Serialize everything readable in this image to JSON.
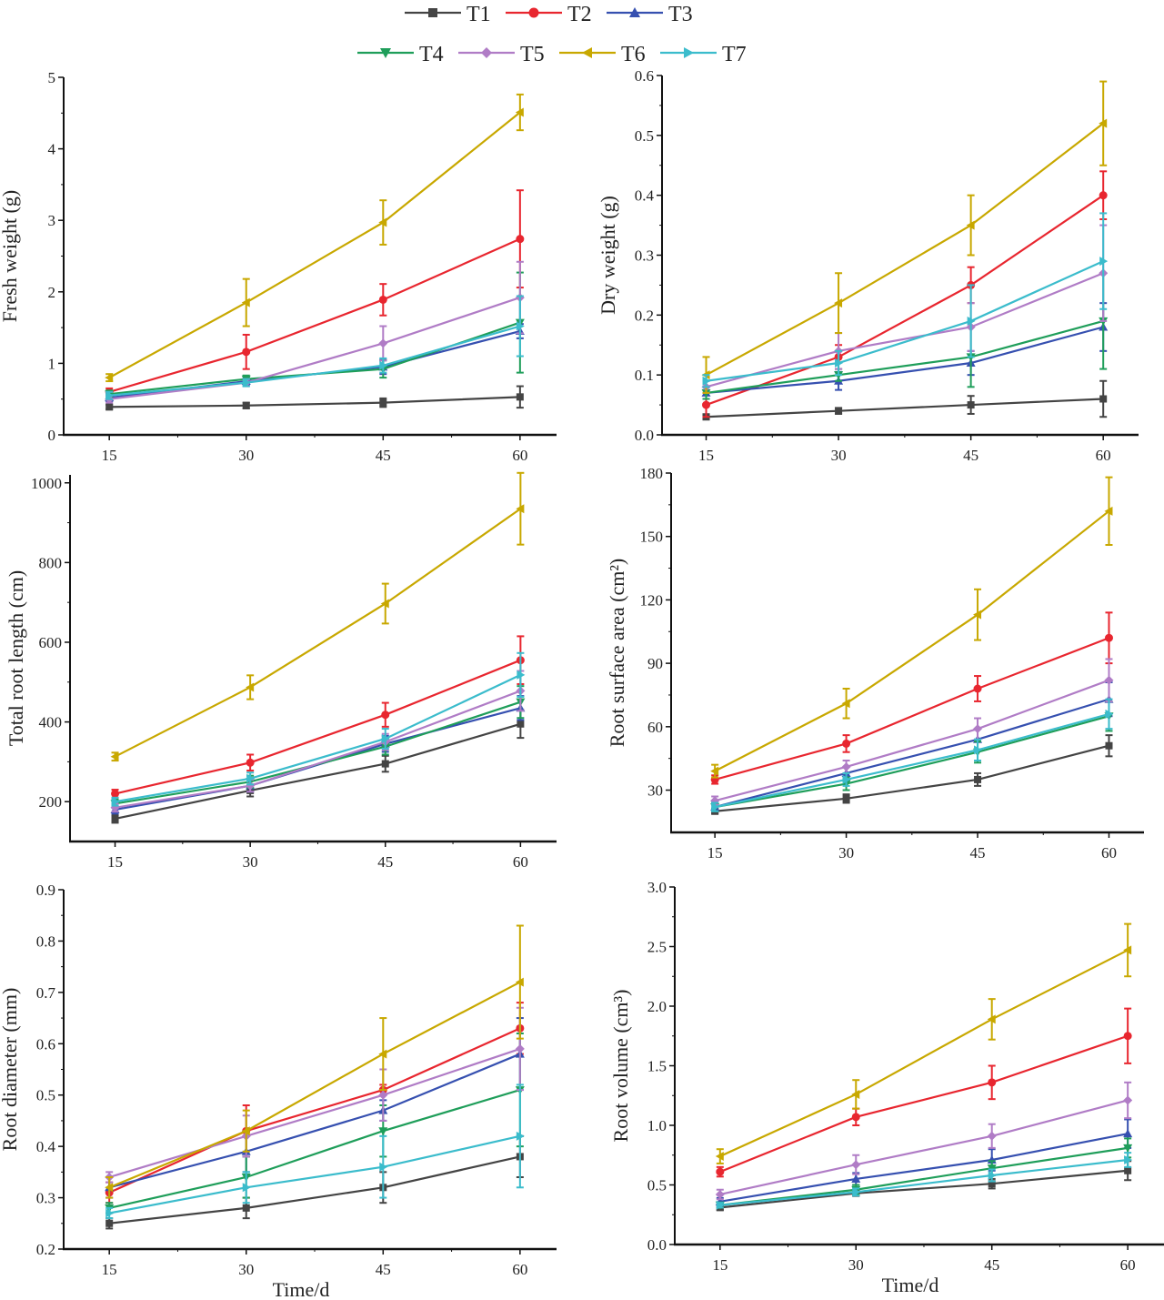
{
  "legend": {
    "placement": "top-center",
    "entries": [
      "T1",
      "T2",
      "T3",
      "T4",
      "T5",
      "T6",
      "T7"
    ]
  },
  "series_style": [
    {
      "name": "T1",
      "color": "#444444",
      "marker": "square"
    },
    {
      "name": "T2",
      "color": "#e8262f",
      "marker": "circle"
    },
    {
      "name": "T3",
      "color": "#3650b0",
      "marker": "triangle-up"
    },
    {
      "name": "T4",
      "color": "#1f9e5a",
      "marker": "triangle-down"
    },
    {
      "name": "T5",
      "color": "#b07cc6",
      "marker": "diamond"
    },
    {
      "name": "T6",
      "color": "#c8a800",
      "marker": "triangle-left"
    },
    {
      "name": "T7",
      "color": "#3bbccc",
      "marker": "triangle-right"
    }
  ],
  "chart_data": [
    {
      "type": "line",
      "ylabel": "Fresh weight (g)",
      "xlabel": "",
      "x": [
        15,
        30,
        45,
        60
      ],
      "x_ticks": [
        "15",
        "30",
        "45",
        "60"
      ],
      "xlim": [
        10,
        64
      ],
      "ylim": [
        0,
        5
      ],
      "y_ticks": [
        "0",
        "1",
        "2",
        "3",
        "4",
        "5"
      ],
      "y_tick_values": [
        0,
        1,
        2,
        3,
        4,
        5
      ],
      "series": [
        {
          "name": "T1",
          "values": [
            0.39,
            0.41,
            0.45,
            0.53
          ],
          "errors": [
            0.03,
            0.04,
            0.06,
            0.15
          ]
        },
        {
          "name": "T2",
          "values": [
            0.6,
            1.16,
            1.89,
            2.74
          ],
          "errors": [
            0.05,
            0.24,
            0.22,
            0.68
          ]
        },
        {
          "name": "T3",
          "values": [
            0.52,
            0.75,
            0.95,
            1.45
          ],
          "errors": [
            0.05,
            0.05,
            0.1,
            0.1
          ]
        },
        {
          "name": "T4",
          "values": [
            0.57,
            0.78,
            0.92,
            1.57
          ],
          "errors": [
            0.05,
            0.05,
            0.12,
            0.7
          ]
        },
        {
          "name": "T5",
          "values": [
            0.5,
            0.73,
            1.28,
            1.92
          ],
          "errors": [
            0.05,
            0.05,
            0.24,
            0.5
          ]
        },
        {
          "name": "T6",
          "values": [
            0.8,
            1.85,
            2.97,
            4.51
          ],
          "errors": [
            0.05,
            0.33,
            0.31,
            0.25
          ]
        },
        {
          "name": "T7",
          "values": [
            0.55,
            0.73,
            0.97,
            1.52
          ],
          "errors": [
            0.05,
            0.05,
            0.1,
            0.42
          ]
        }
      ]
    },
    {
      "type": "line",
      "ylabel": "Dry weight (g)",
      "xlabel": "",
      "x": [
        15,
        30,
        45,
        60
      ],
      "x_ticks": [
        "15",
        "30",
        "45",
        "60"
      ],
      "xlim": [
        10,
        64
      ],
      "ylim": [
        0,
        0.6
      ],
      "y_ticks": [
        "0.0",
        "0.1",
        "0.2",
        "0.3",
        "0.4",
        "0.5",
        "0.6"
      ],
      "y_tick_values": [
        0,
        0.1,
        0.2,
        0.3,
        0.4,
        0.5,
        0.6
      ],
      "series": [
        {
          "name": "T1",
          "values": [
            0.03,
            0.04,
            0.05,
            0.06
          ],
          "errors": [
            0.003,
            0.005,
            0.015,
            0.03
          ]
        },
        {
          "name": "T2",
          "values": [
            0.05,
            0.13,
            0.25,
            0.4
          ],
          "errors": [
            0.02,
            0.02,
            0.03,
            0.04
          ]
        },
        {
          "name": "T3",
          "values": [
            0.07,
            0.09,
            0.12,
            0.18
          ],
          "errors": [
            0.01,
            0.015,
            0.02,
            0.04
          ]
        },
        {
          "name": "T4",
          "values": [
            0.07,
            0.1,
            0.13,
            0.19
          ],
          "errors": [
            0.01,
            0.01,
            0.05,
            0.08
          ]
        },
        {
          "name": "T5",
          "values": [
            0.08,
            0.14,
            0.18,
            0.27
          ],
          "errors": [
            0.01,
            0.03,
            0.04,
            0.08
          ]
        },
        {
          "name": "T6",
          "values": [
            0.1,
            0.22,
            0.35,
            0.52
          ],
          "errors": [
            0.03,
            0.05,
            0.05,
            0.07
          ]
        },
        {
          "name": "T7",
          "values": [
            0.09,
            0.12,
            0.19,
            0.29
          ],
          "errors": [
            0.01,
            0.02,
            0.06,
            0.08
          ]
        }
      ]
    },
    {
      "type": "line",
      "ylabel": "Total root length (cm)",
      "xlabel": "",
      "x": [
        15,
        30,
        45,
        60
      ],
      "x_ticks": [
        "15",
        "30",
        "45",
        "60"
      ],
      "xlim": [
        10,
        64
      ],
      "ylim": [
        100,
        1020
      ],
      "y_ticks": [
        "200",
        "400",
        "600",
        "800",
        "1000"
      ],
      "y_tick_values": [
        200,
        400,
        600,
        800,
        1000
      ],
      "series": [
        {
          "name": "T1",
          "values": [
            157,
            228,
            295,
            395
          ],
          "errors": [
            10,
            15,
            20,
            35
          ]
        },
        {
          "name": "T2",
          "values": [
            220,
            298,
            418,
            555
          ],
          "errors": [
            10,
            20,
            30,
            60
          ]
        },
        {
          "name": "T3",
          "values": [
            180,
            240,
            345,
            435
          ],
          "errors": [
            10,
            15,
            20,
            30
          ]
        },
        {
          "name": "T4",
          "values": [
            195,
            250,
            338,
            450
          ],
          "errors": [
            10,
            15,
            20,
            40
          ]
        },
        {
          "name": "T5",
          "values": [
            185,
            240,
            350,
            478
          ],
          "errors": [
            10,
            15,
            20,
            50
          ]
        },
        {
          "name": "T6",
          "values": [
            313,
            487,
            697,
            935
          ],
          "errors": [
            10,
            30,
            50,
            90
          ]
        },
        {
          "name": "T7",
          "values": [
            200,
            258,
            358,
            518
          ],
          "errors": [
            10,
            15,
            25,
            55
          ]
        }
      ]
    },
    {
      "type": "line",
      "ylabel": "Root surface area (cm²)",
      "xlabel": "",
      "x": [
        15,
        30,
        45,
        60
      ],
      "x_ticks": [
        "15",
        "30",
        "45",
        "60"
      ],
      "xlim": [
        10,
        64
      ],
      "ylim": [
        10,
        180
      ],
      "y_ticks": [
        "30",
        "60",
        "90",
        "120",
        "150",
        "180"
      ],
      "y_tick_values": [
        30,
        60,
        90,
        120,
        150,
        180
      ],
      "series": [
        {
          "name": "T1",
          "values": [
            20,
            26,
            35,
            51
          ],
          "errors": [
            1,
            2,
            3,
            5
          ]
        },
        {
          "name": "T2",
          "values": [
            35,
            52,
            78,
            102
          ],
          "errors": [
            2,
            4,
            6,
            12
          ]
        },
        {
          "name": "T3",
          "values": [
            22,
            38,
            54,
            73
          ],
          "errors": [
            2,
            3,
            5,
            8
          ]
        },
        {
          "name": "T4",
          "values": [
            22,
            33,
            48,
            65
          ],
          "errors": [
            2,
            3,
            5,
            7
          ]
        },
        {
          "name": "T5",
          "values": [
            25,
            41,
            59,
            82
          ],
          "errors": [
            2,
            3,
            5,
            10
          ]
        },
        {
          "name": "T6",
          "values": [
            39,
            71,
            113,
            162
          ],
          "errors": [
            3,
            7,
            12,
            16
          ]
        },
        {
          "name": "T7",
          "values": [
            22,
            35,
            49,
            66
          ],
          "errors": [
            2,
            3,
            5,
            7
          ]
        }
      ]
    },
    {
      "type": "line",
      "ylabel": "Root diameter (mm)",
      "xlabel": "Time/d",
      "x": [
        15,
        30,
        45,
        60
      ],
      "x_ticks": [
        "15",
        "30",
        "45",
        "60"
      ],
      "xlim": [
        10,
        64
      ],
      "ylim": [
        0.2,
        0.9
      ],
      "y_ticks": [
        "0.2",
        "0.3",
        "0.4",
        "0.5",
        "0.6",
        "0.7",
        "0.8",
        "0.9"
      ],
      "y_tick_values": [
        0.2,
        0.3,
        0.4,
        0.5,
        0.6,
        0.7,
        0.8,
        0.9
      ],
      "series": [
        {
          "name": "T1",
          "values": [
            0.25,
            0.28,
            0.32,
            0.38
          ],
          "errors": [
            0.01,
            0.02,
            0.03,
            0.04
          ]
        },
        {
          "name": "T2",
          "values": [
            0.31,
            0.43,
            0.51,
            0.63
          ],
          "errors": [
            0.02,
            0.05,
            0.01,
            0.05
          ]
        },
        {
          "name": "T3",
          "values": [
            0.32,
            0.39,
            0.47,
            0.58
          ],
          "errors": [
            0.02,
            0.04,
            0.02,
            0.07
          ]
        },
        {
          "name": "T4",
          "values": [
            0.28,
            0.34,
            0.43,
            0.51
          ],
          "errors": [
            0.01,
            0.04,
            0.05,
            0.11
          ]
        },
        {
          "name": "T5",
          "values": [
            0.34,
            0.42,
            0.5,
            0.59
          ],
          "errors": [
            0.01,
            0.04,
            0.05,
            0.08
          ]
        },
        {
          "name": "T6",
          "values": [
            0.32,
            0.43,
            0.58,
            0.72
          ],
          "errors": [
            0.02,
            0.04,
            0.07,
            0.11
          ]
        },
        {
          "name": "T7",
          "values": [
            0.27,
            0.32,
            0.36,
            0.42
          ],
          "errors": [
            0.01,
            0.03,
            0.06,
            0.1
          ]
        }
      ]
    },
    {
      "type": "line",
      "ylabel": "Root volume (cm³)",
      "xlabel": "Time/d",
      "x": [
        15,
        30,
        45,
        60
      ],
      "x_ticks": [
        "15",
        "30",
        "45",
        "60"
      ],
      "xlim": [
        10,
        64
      ],
      "ylim": [
        0,
        3
      ],
      "y_ticks": [
        "0.0",
        "0.5",
        "1.0",
        "1.5",
        "2.0",
        "2.5",
        "3.0"
      ],
      "y_tick_values": [
        0,
        0.5,
        1,
        1.5,
        2,
        2.5,
        3
      ],
      "series": [
        {
          "name": "T1",
          "values": [
            0.31,
            0.43,
            0.51,
            0.62
          ],
          "errors": [
            0.02,
            0.02,
            0.04,
            0.08
          ]
        },
        {
          "name": "T2",
          "values": [
            0.61,
            1.07,
            1.36,
            1.75
          ],
          "errors": [
            0.04,
            0.07,
            0.14,
            0.23
          ]
        },
        {
          "name": "T3",
          "values": [
            0.36,
            0.55,
            0.71,
            0.93
          ],
          "errors": [
            0.03,
            0.05,
            0.09,
            0.12
          ]
        },
        {
          "name": "T4",
          "values": [
            0.33,
            0.46,
            0.64,
            0.81
          ],
          "errors": [
            0.02,
            0.04,
            0.06,
            0.08
          ]
        },
        {
          "name": "T5",
          "values": [
            0.42,
            0.67,
            0.91,
            1.21
          ],
          "errors": [
            0.04,
            0.08,
            0.1,
            0.15
          ]
        },
        {
          "name": "T6",
          "values": [
            0.74,
            1.26,
            1.89,
            2.47
          ],
          "errors": [
            0.06,
            0.12,
            0.17,
            0.22
          ]
        },
        {
          "name": "T7",
          "values": [
            0.33,
            0.44,
            0.58,
            0.71
          ],
          "errors": [
            0.02,
            0.03,
            0.05,
            0.06
          ]
        }
      ]
    }
  ]
}
